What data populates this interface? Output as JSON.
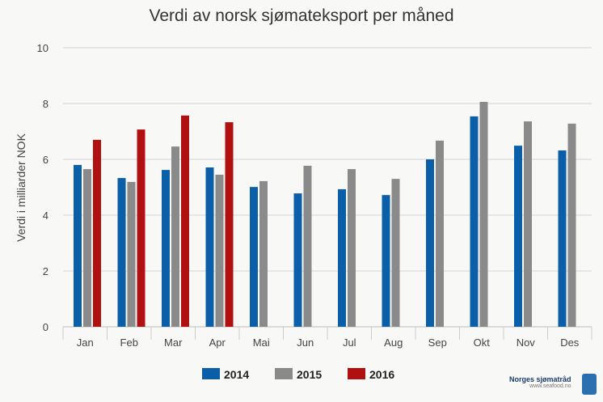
{
  "chart_data": {
    "type": "bar",
    "title": "Verdi av norsk sjømateksport per måned",
    "ylabel": "Verdi i milliarder NOK",
    "xlabel": "",
    "ylim": [
      0,
      10
    ],
    "yticks": [
      0,
      2,
      4,
      6,
      8,
      10
    ],
    "grid": true,
    "legend_position": "bottom",
    "categories": [
      "Jan",
      "Feb",
      "Mar",
      "Apr",
      "Mai",
      "Jun",
      "Jul",
      "Aug",
      "Sep",
      "Okt",
      "Nov",
      "Des"
    ],
    "series": [
      {
        "name": "2014",
        "color": "#0a5fa8",
        "values": [
          5.8,
          5.33,
          5.62,
          5.71,
          5.01,
          4.78,
          4.93,
          4.72,
          6.0,
          7.54,
          6.49,
          6.32
        ]
      },
      {
        "name": "2015",
        "color": "#8a8a8a",
        "values": [
          5.65,
          5.19,
          6.46,
          5.45,
          5.22,
          5.77,
          5.65,
          5.3,
          6.67,
          8.06,
          7.36,
          7.28
        ]
      },
      {
        "name": "2016",
        "color": "#b01010",
        "values": [
          6.7,
          7.07,
          7.57,
          7.33,
          null,
          null,
          null,
          null,
          null,
          null,
          null,
          null
        ]
      }
    ]
  },
  "logo": {
    "name": "Norges sjømatråd",
    "url": "www.seafood.no",
    "badge": "NORGE"
  }
}
